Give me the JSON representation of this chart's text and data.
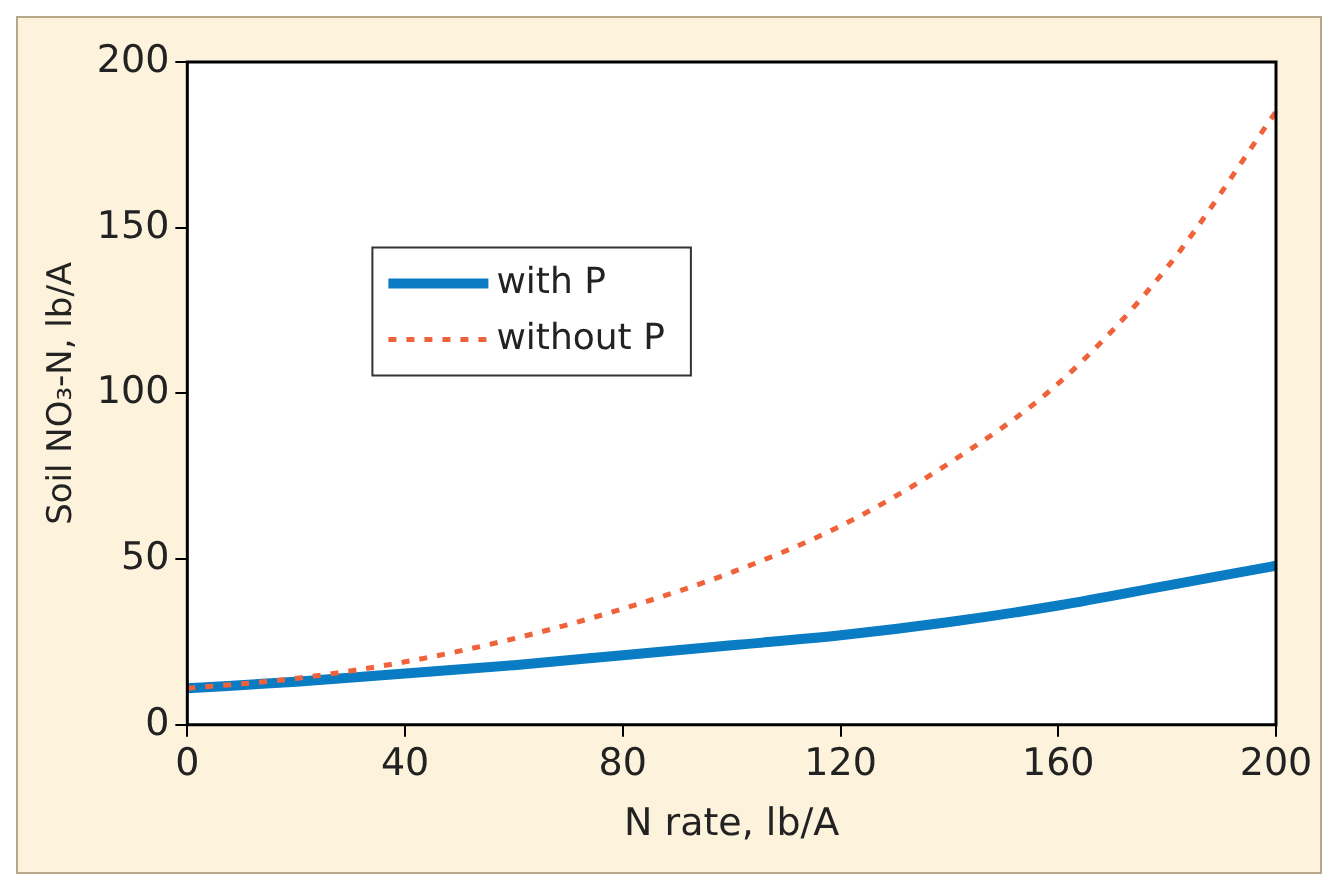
{
  "chart_data": {
    "type": "line",
    "xlabel": "N rate, lb/A",
    "ylabel": "Soil NO₃-N, lb/A",
    "x": [
      0,
      20,
      40,
      60,
      80,
      100,
      120,
      140,
      160,
      180,
      200
    ],
    "series": [
      {
        "name": "with P",
        "color": "#0a7cc4",
        "line_style": "solid",
        "values": [
          11,
          13,
          15.5,
          18,
          21,
          24,
          27,
          31,
          36,
          42,
          48
        ]
      },
      {
        "name": "without P",
        "color": "#f0623a",
        "line_style": "dotted",
        "values": [
          11,
          14,
          19,
          26,
          35,
          46,
          60,
          79,
          103,
          138,
          185
        ]
      }
    ],
    "xlim": [
      0,
      200
    ],
    "xticks": [
      0,
      40,
      80,
      120,
      160,
      200
    ],
    "ylim": [
      0,
      200
    ],
    "yticks": [
      0,
      50,
      100,
      150,
      200
    ],
    "grid": false,
    "legend": "top left",
    "marker": "none"
  }
}
